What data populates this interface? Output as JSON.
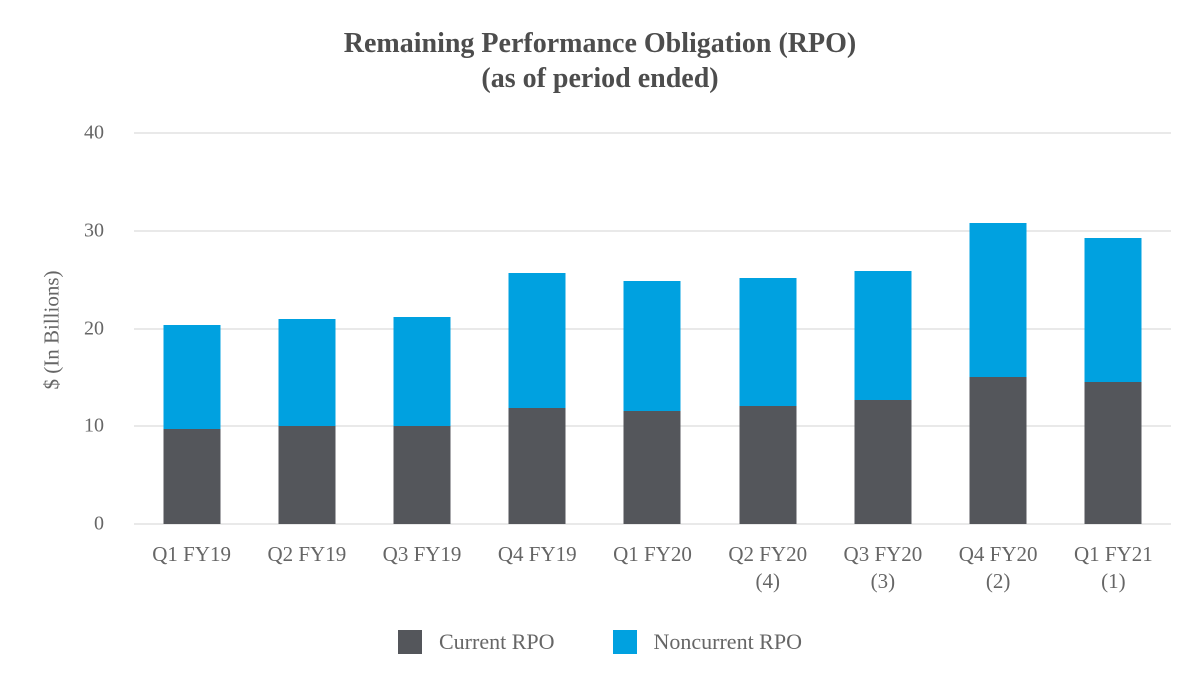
{
  "style": {
    "title_color": "#4d4d4d",
    "axis_text_color": "#666666",
    "grid_color": "#e9e9e9",
    "current_rpo_color": "#54565B",
    "noncurrent_rpo_color": "#00A1E0"
  },
  "chart_data": {
    "type": "bar",
    "stacked": true,
    "title": "Remaining Performance Obligation (RPO)",
    "subtitle": "(as of period ended)",
    "xlabel": "",
    "ylabel": "$ (In Billions)",
    "ymin": 0,
    "ymax": 40,
    "yticks": [
      0,
      10,
      20,
      30,
      40
    ],
    "grid": "horizontal",
    "legend_position": "bottom",
    "categories": [
      "Q1 FY19",
      "Q2 FY19",
      "Q3 FY19",
      "Q4 FY19",
      "Q1 FY20",
      "Q2 FY20",
      "Q3 FY20",
      "Q4 FY20",
      "Q1 FY21"
    ],
    "category_notes": [
      "",
      "",
      "",
      "",
      "",
      "(4)",
      "(3)",
      "(2)",
      "(1)"
    ],
    "series": [
      {
        "name": "Current RPO",
        "color": "#54565B",
        "values": [
          9.7,
          10.0,
          10.0,
          11.9,
          11.6,
          12.1,
          12.7,
          15.0,
          14.5
        ]
      },
      {
        "name": "Noncurrent RPO",
        "color": "#00A1E0",
        "values": [
          10.7,
          11.0,
          11.2,
          13.8,
          13.3,
          13.1,
          13.2,
          15.8,
          14.8
        ]
      }
    ],
    "stack_totals": [
      20.4,
      21.0,
      21.2,
      25.7,
      24.9,
      25.2,
      25.9,
      30.8,
      29.3
    ]
  }
}
